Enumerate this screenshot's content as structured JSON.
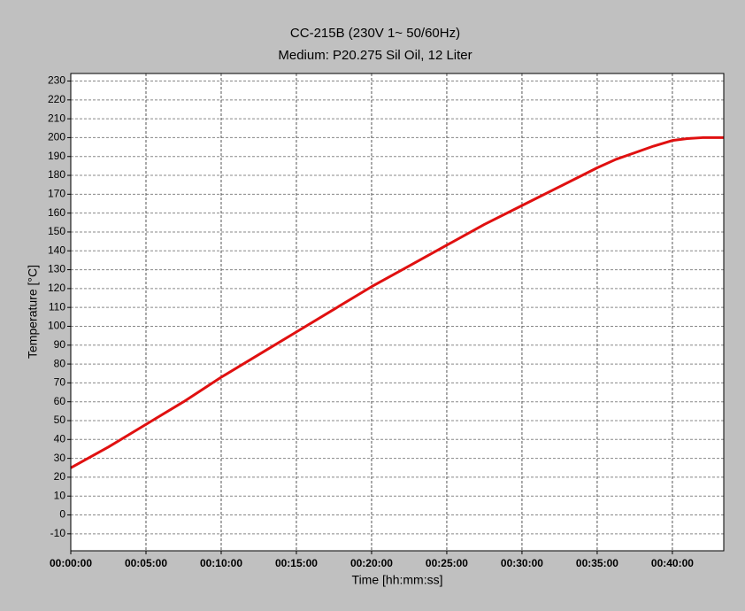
{
  "chart_data": {
    "type": "line",
    "title": "CC-215B (230V 1~ 50/60Hz)",
    "subtitle": "Medium: P20.275 Sil Oil, 12 Liter",
    "x_label": "Time [hh:mm:ss]",
    "y_label": "Temperature [°C]",
    "x": [
      0,
      150,
      300,
      450,
      600,
      750,
      900,
      1050,
      1200,
      1350,
      1500,
      1650,
      1800,
      1950,
      2100,
      2175,
      2250,
      2325,
      2400,
      2460,
      2520,
      2605
    ],
    "series": [
      {
        "color": "#e01010",
        "values": [
          25,
          36,
          48,
          60,
          73,
          85,
          97,
          109,
          121,
          132,
          143,
          154,
          164,
          174,
          184,
          188.5,
          192,
          195.5,
          198.5,
          199.5,
          200,
          200
        ]
      }
    ],
    "xlim": [
      0,
      2605
    ],
    "xticks": [
      {
        "value": 0,
        "label": "00:00:00"
      },
      {
        "value": 300,
        "label": "00:05:00"
      },
      {
        "value": 600,
        "label": "00:10:00"
      },
      {
        "value": 900,
        "label": "00:15:00"
      },
      {
        "value": 1200,
        "label": "00:20:00"
      },
      {
        "value": 1500,
        "label": "00:25:00"
      },
      {
        "value": 1800,
        "label": "00:30:00"
      },
      {
        "value": 2100,
        "label": "00:35:00"
      },
      {
        "value": 2400,
        "label": "00:40:00"
      }
    ],
    "ylim": [
      -19,
      234
    ],
    "yticks": [
      -10,
      0,
      10,
      20,
      30,
      40,
      50,
      60,
      70,
      80,
      90,
      100,
      110,
      120,
      130,
      140,
      150,
      160,
      170,
      180,
      190,
      200,
      210,
      220,
      230
    ],
    "grid": true
  }
}
